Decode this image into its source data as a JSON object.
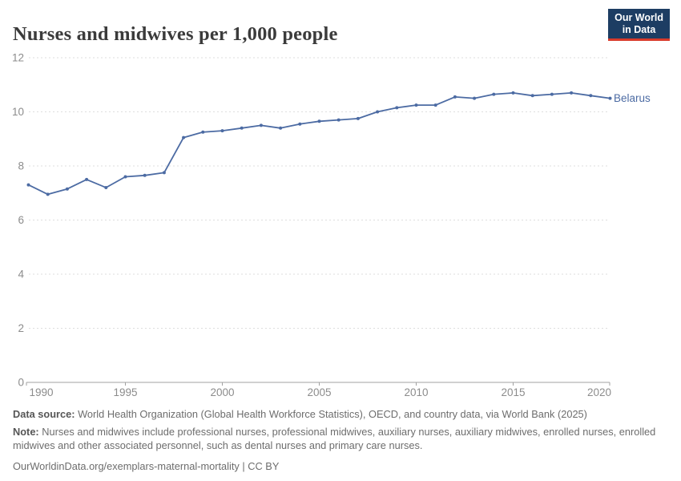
{
  "header": {
    "title": "Nurses and midwives per 1,000 people",
    "logo": {
      "line1": "Our World",
      "line2": "in Data"
    }
  },
  "chart_data": {
    "type": "line",
    "title": "Nurses and midwives per 1,000 people",
    "x": [
      1990,
      1991,
      1992,
      1993,
      1994,
      1995,
      1996,
      1997,
      1998,
      1999,
      2000,
      2001,
      2002,
      2003,
      2004,
      2005,
      2006,
      2007,
      2008,
      2009,
      2010,
      2011,
      2012,
      2013,
      2014,
      2015,
      2016,
      2017,
      2018,
      2019,
      2020
    ],
    "series": [
      {
        "name": "Belarus",
        "values": [
          7.3,
          6.95,
          7.15,
          7.5,
          7.2,
          7.6,
          7.65,
          7.75,
          9.05,
          9.25,
          9.3,
          9.4,
          9.5,
          9.4,
          9.55,
          9.65,
          9.7,
          9.75,
          10.0,
          10.15,
          10.25,
          10.25,
          10.55,
          10.5,
          10.65,
          10.7,
          10.6,
          10.65,
          10.7,
          10.6,
          10.5
        ],
        "color": "#4c6ba3"
      }
    ],
    "end_label": "Belarus",
    "x_ticks": [
      1990,
      1995,
      2000,
      2005,
      2010,
      2015,
      2020
    ],
    "y_ticks": [
      0,
      2,
      4,
      6,
      8,
      10,
      12
    ],
    "xlim": [
      1990,
      2020
    ],
    "ylim": [
      0,
      12
    ],
    "grid": "horizontal-dashed",
    "legend_position": "end-of-line"
  },
  "footer": {
    "data_source_label": "Data source:",
    "data_source_text": " World Health Organization (Global Health Workforce Statistics), OECD, and country data, via World Bank (2025)",
    "note_label": "Note:",
    "note_text": " Nurses and midwives include professional nurses, professional midwives, auxiliary nurses, auxiliary midwives, enrolled nurses, enrolled midwives and other associated personnel, such as dental nurses and primary care nurses.",
    "url": "OurWorldinData.org/exemplars-maternal-mortality",
    "separator": " | ",
    "license": "CC BY"
  },
  "colors": {
    "line": "#4c6ba3",
    "axis_text": "#8c8c8c",
    "gridline": "#dedede",
    "axis_line": "#a1a1a1",
    "title": "#3b3b3b",
    "logo_bg": "#1d3d63",
    "logo_red": "#d93b2b"
  }
}
